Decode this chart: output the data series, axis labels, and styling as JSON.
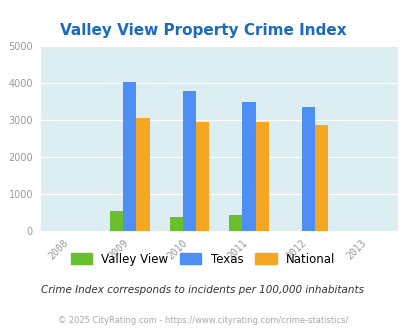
{
  "title": "Valley View Property Crime Index",
  "years": [
    2009,
    2010,
    2011,
    2012
  ],
  "x_ticks": [
    2008,
    2009,
    2010,
    2011,
    2012,
    2013
  ],
  "valley_view": [
    550,
    380,
    420,
    0
  ],
  "texas": [
    4020,
    3800,
    3480,
    3360
  ],
  "national": [
    3050,
    2960,
    2940,
    2880
  ],
  "color_vv": "#6abf2e",
  "color_tx": "#4d8ff5",
  "color_nat": "#f5a623",
  "bg_color": "#ddeef3",
  "ylim": [
    0,
    5000
  ],
  "yticks": [
    0,
    1000,
    2000,
    3000,
    4000,
    5000
  ],
  "bar_width": 0.22,
  "subtitle": "Crime Index corresponds to incidents per 100,000 inhabitants",
  "footer": "© 2025 CityRating.com - https://www.cityrating.com/crime-statistics/",
  "legend_labels": [
    "Valley View",
    "Texas",
    "National"
  ]
}
